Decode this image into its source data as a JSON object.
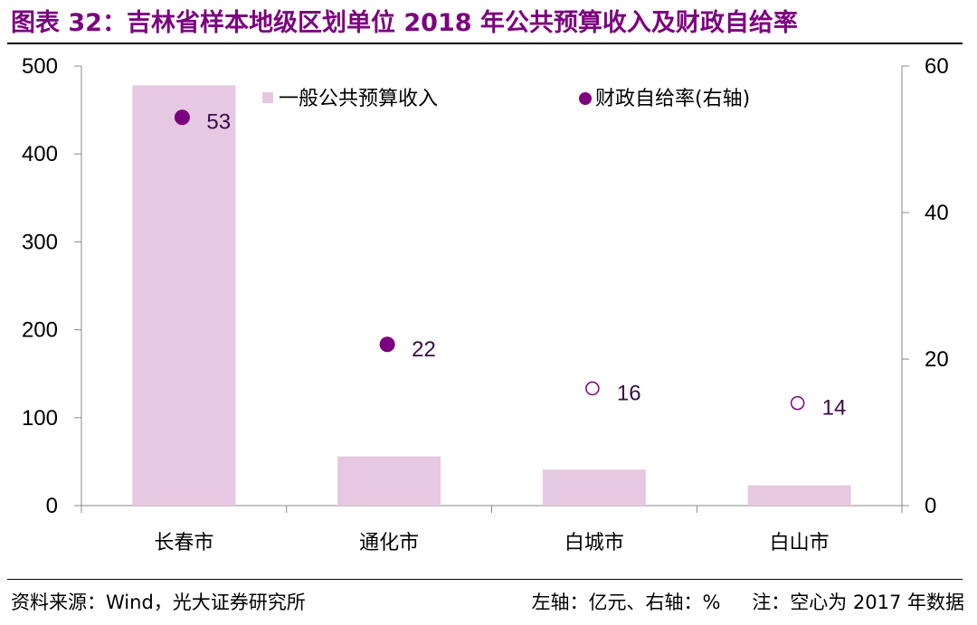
{
  "header": {
    "title": "图表 32：吉林省样本地级区划单位 2018 年公共预算收入及财政自给率"
  },
  "footer": {
    "source": "资料来源：Wind，光大证券研究所",
    "left_axis_note": "左轴：亿元、右轴：%",
    "note": "注：空心为 2017 年数据"
  },
  "colors": {
    "bar": "#e6c8e2",
    "dot": "#7c007f",
    "title": "#7c007f"
  },
  "chart_data": {
    "type": "bar",
    "categories": [
      "长春市",
      "通化市",
      "白城市",
      "白山市"
    ],
    "series": [
      {
        "name": "一般公共预算收入",
        "axis": "left",
        "kind": "bar",
        "values": [
          478,
          56,
          41,
          23
        ]
      },
      {
        "name": "财政自给率(右轴)",
        "axis": "right",
        "kind": "scatter",
        "values": [
          53,
          22,
          16,
          14
        ],
        "labels": [
          "53",
          "22",
          "16",
          "14"
        ],
        "hollow": [
          false,
          false,
          true,
          true
        ]
      }
    ],
    "left_axis": {
      "min": 0,
      "max": 500,
      "ticks": [
        0,
        100,
        200,
        300,
        400,
        500
      ]
    },
    "right_axis": {
      "min": 0,
      "max": 60,
      "ticks": [
        0,
        20,
        40,
        60
      ]
    },
    "legend": [
      "一般公共预算收入",
      "财政自给率(右轴)"
    ],
    "legend_position": "top"
  }
}
